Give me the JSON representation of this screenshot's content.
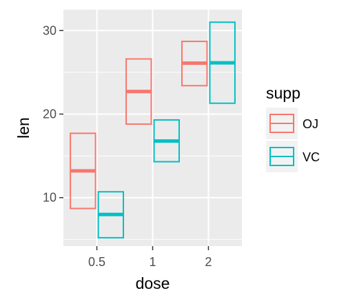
{
  "chart_data": {
    "type": "crossbar",
    "title": "",
    "xlabel": "dose",
    "ylabel": "len",
    "categories": [
      "0.5",
      "1",
      "2"
    ],
    "yticks": [
      10,
      20,
      30
    ],
    "ylim": [
      4.2,
      32.5
    ],
    "grid": true,
    "legend": {
      "title": "supp",
      "position": "right",
      "entries": [
        {
          "label": "OJ",
          "color": "#F8766D"
        },
        {
          "label": "VC",
          "color": "#00BFC4"
        }
      ]
    },
    "series": [
      {
        "name": "OJ",
        "color": "#F8766D",
        "lower": [
          8.7,
          18.8,
          23.4
        ],
        "middle": [
          13.2,
          22.7,
          26.1
        ],
        "upper": [
          17.7,
          26.6,
          28.7
        ]
      },
      {
        "name": "VC",
        "color": "#00BFC4",
        "lower": [
          5.2,
          14.3,
          21.3
        ],
        "middle": [
          7.98,
          16.77,
          26.14
        ],
        "upper": [
          10.7,
          19.3,
          31.0
        ]
      }
    ]
  }
}
